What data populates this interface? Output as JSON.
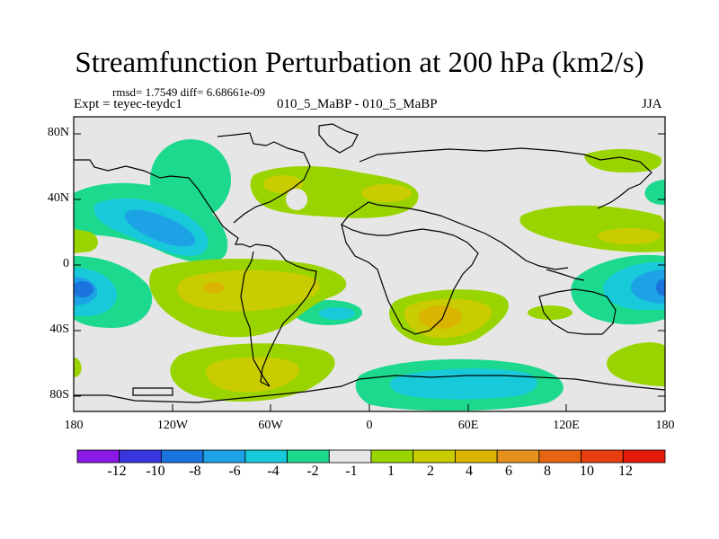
{
  "title": "Streamfunction Perturbation at 200 hPa (km2/s)",
  "stats_line": "rmsd= 1.7549 diff= 6.68661e-09",
  "left_label": "Expt = teyec-teydc1",
  "center_label": "010_5_MaBP - 010_5_MaBP",
  "right_label": "JJA",
  "y_ticks": [
    "80N",
    "40N",
    "0",
    "40S",
    "80S"
  ],
  "x_ticks": [
    "180",
    "120W",
    "60W",
    "0",
    "60E",
    "120E",
    "180"
  ],
  "colorbar": {
    "labels": [
      "-12",
      "-10",
      "-8",
      "-6",
      "-4",
      "-2",
      "-1",
      "1",
      "2",
      "4",
      "6",
      "8",
      "10",
      "12"
    ],
    "colors": [
      "#8a19e6",
      "#3a36de",
      "#1b73de",
      "#1da2e6",
      "#18c9d9",
      "#1dd98e",
      "#e6e6e6",
      "#9ad400",
      "#c8cc00",
      "#d9b400",
      "#e3901c",
      "#e66414",
      "#e63e0e",
      "#e61a0a"
    ]
  },
  "colors": {
    "background_field": "#e6e6e6",
    "coastline": "#000000"
  }
}
